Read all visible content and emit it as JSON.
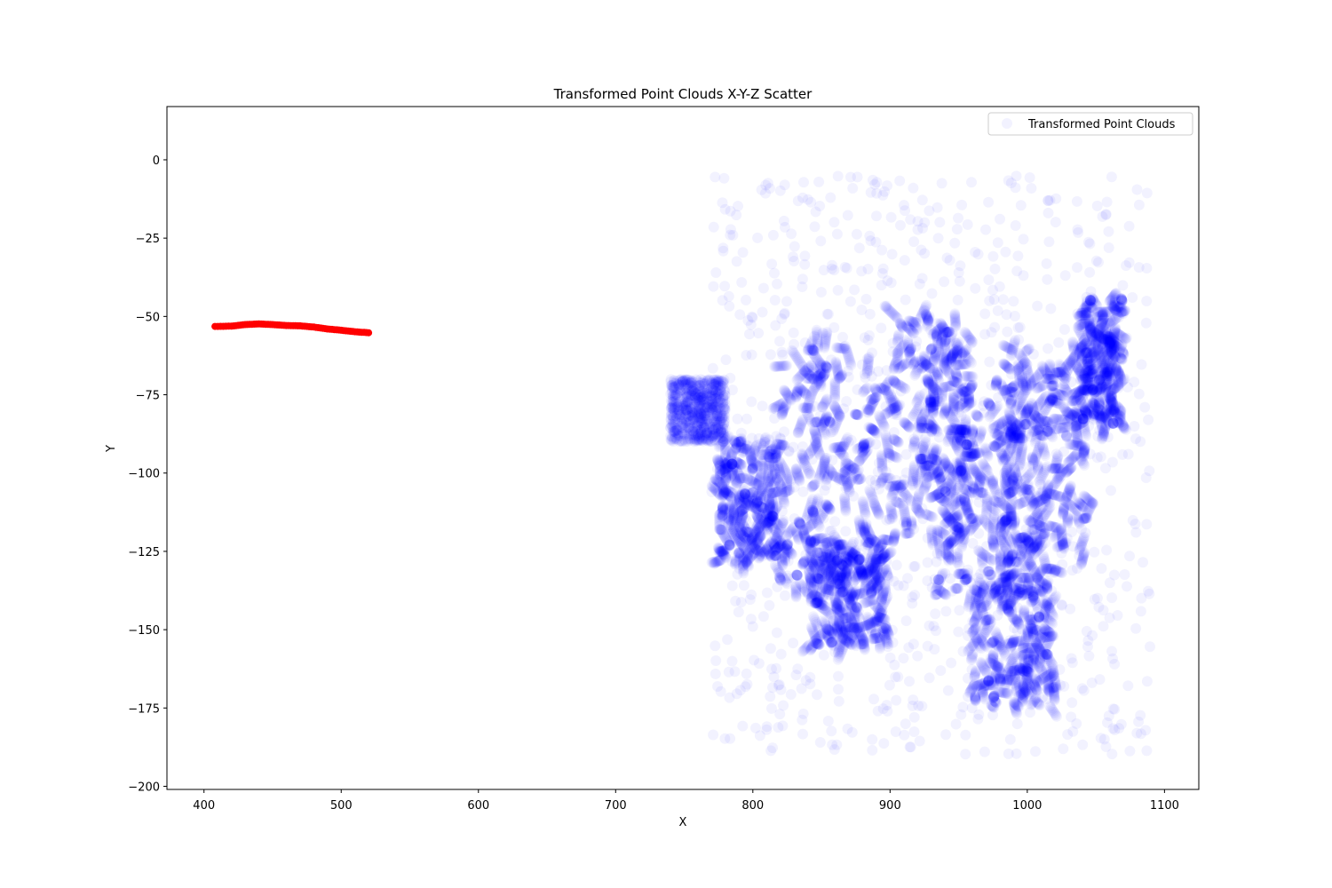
{
  "chart_data": {
    "type": "scatter",
    "title": "Transformed Point Clouds X-Y-Z Scatter",
    "xlabel": "X",
    "ylabel": "Y",
    "xlim": [
      373,
      1125
    ],
    "ylim": [
      -201,
      17
    ],
    "xticks": [
      400,
      500,
      600,
      700,
      800,
      900,
      1000,
      1100
    ],
    "yticks": [
      0,
      -25,
      -50,
      -75,
      -100,
      -125,
      -150,
      -175,
      -200
    ],
    "ytick_labels": [
      "0",
      "−25",
      "−50",
      "−75",
      "−100",
      "−125",
      "−150",
      "−175",
      "−200"
    ],
    "grid": false,
    "legend": {
      "position": "top-right",
      "entries": [
        "Transformed Point Clouds"
      ]
    },
    "series": [
      {
        "name": "",
        "color": "#ff0000",
        "opacity": 1,
        "marker_radius": 4,
        "kind": "trajectory",
        "points": [
          [
            408,
            -53.2
          ],
          [
            420,
            -53.1
          ],
          [
            430,
            -52.6
          ],
          [
            440,
            -52.4
          ],
          [
            450,
            -52.6
          ],
          [
            460,
            -52.9
          ],
          [
            470,
            -53.0
          ],
          [
            480,
            -53.4
          ],
          [
            490,
            -54.0
          ],
          [
            500,
            -54.4
          ],
          [
            510,
            -54.9
          ],
          [
            520,
            -55.2
          ]
        ]
      },
      {
        "name": "Transformed Point Clouds",
        "color": "#0000ff",
        "opacity": 0.05,
        "marker_radius": 6,
        "kind": "cloud",
        "dense_regions": [
          {
            "x": [
              820,
              900
            ],
            "y": [
              -140,
              -60
            ]
          },
          {
            "x": [
              840,
              900
            ],
            "y": [
              -155,
              -120
            ]
          },
          {
            "x": [
              900,
              960
            ],
            "y": [
              -120,
              -50
            ]
          },
          {
            "x": [
              930,
              1010
            ],
            "y": [
              -140,
              -65
            ]
          },
          {
            "x": [
              980,
              1045
            ],
            "y": [
              -130,
              -60
            ]
          },
          {
            "x": [
              1040,
              1070
            ],
            "y": [
              -85,
              -45
            ]
          },
          {
            "x": [
              960,
              1020
            ],
            "y": [
              -175,
              -130
            ]
          },
          {
            "x": [
              775,
              820
            ],
            "y": [
              -130,
              -90
            ]
          }
        ],
        "sparse_regions": [
          {
            "x": [
              770,
              1090
            ],
            "y": [
              -190,
              -5
            ]
          },
          {
            "x": [
              740,
              780
            ],
            "y": [
              -90,
              -70
            ]
          }
        ]
      }
    ]
  }
}
